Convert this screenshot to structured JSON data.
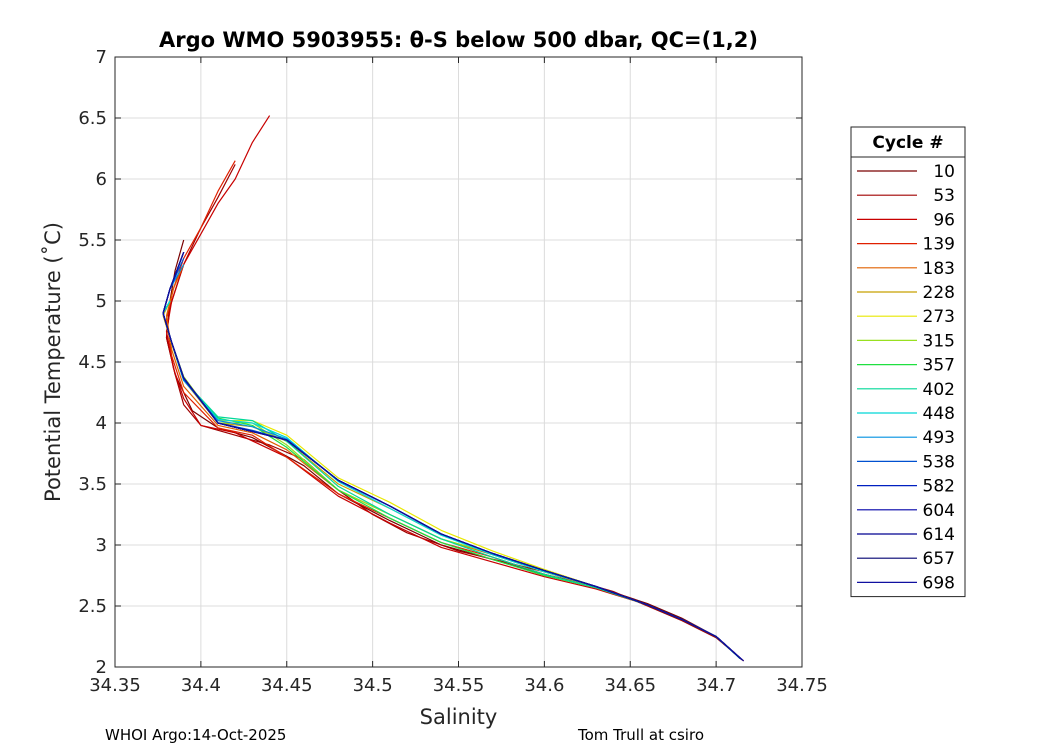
{
  "chart_data": {
    "type": "line",
    "title": "Argo WMO 5903955: θ-S below 500 dbar,  QC=(1,2)",
    "xlabel": "Salinity",
    "ylabel": "Potential Temperature (˚C)",
    "xlim": [
      34.35,
      34.75
    ],
    "ylim": [
      2,
      7
    ],
    "xticks": [
      "34.35",
      "34.4",
      "34.45",
      "34.5",
      "34.55",
      "34.6",
      "34.65",
      "34.7",
      "34.75"
    ],
    "yticks": [
      "2",
      "2.5",
      "3",
      "3.5",
      "4",
      "4.5",
      "5",
      "5.5",
      "6",
      "6.5",
      "7"
    ],
    "grid": true,
    "legend": {
      "title": "Cycle #",
      "placement": "right"
    },
    "series": [
      {
        "name": "10",
        "color": "#7a0000",
        "x": [
          34.716,
          34.7,
          34.68,
          34.66,
          34.63,
          34.6,
          34.57,
          34.54,
          34.51,
          34.48,
          34.46,
          34.43,
          34.41,
          34.395,
          34.385,
          34.38,
          34.382,
          34.385,
          34.39
        ],
        "y": [
          2.05,
          2.25,
          2.4,
          2.52,
          2.66,
          2.76,
          2.88,
          3.0,
          3.2,
          3.42,
          3.65,
          3.88,
          3.96,
          4.1,
          4.4,
          4.7,
          5.0,
          5.25,
          5.5
        ]
      },
      {
        "name": "53",
        "color": "#a00000",
        "x": [
          34.716,
          34.7,
          34.68,
          34.66,
          34.64,
          34.62,
          34.6,
          34.58,
          34.55,
          34.52,
          34.5,
          34.48,
          34.46,
          34.44,
          34.42,
          34.4,
          34.39,
          34.385,
          34.38,
          34.382,
          34.39,
          34.4,
          34.41,
          34.42
        ],
        "y": [
          2.05,
          2.24,
          2.38,
          2.5,
          2.62,
          2.7,
          2.78,
          2.85,
          2.95,
          3.1,
          3.25,
          3.45,
          3.7,
          3.82,
          3.9,
          3.98,
          4.15,
          4.4,
          4.7,
          4.95,
          5.3,
          5.6,
          5.85,
          6.12
        ]
      },
      {
        "name": "96",
        "color": "#c80000",
        "x": [
          34.715,
          34.7,
          34.68,
          34.66,
          34.63,
          34.6,
          34.57,
          34.54,
          34.51,
          34.48,
          34.45,
          34.42,
          34.4,
          34.39,
          34.384,
          34.38,
          34.383,
          34.39,
          34.4,
          34.41,
          34.42,
          34.43,
          34.44
        ],
        "y": [
          2.06,
          2.25,
          2.39,
          2.51,
          2.64,
          2.74,
          2.86,
          2.98,
          3.18,
          3.4,
          3.72,
          3.92,
          3.98,
          4.2,
          4.45,
          4.75,
          5.0,
          5.3,
          5.55,
          5.8,
          6.0,
          6.3,
          6.52
        ]
      },
      {
        "name": "139",
        "color": "#e02000",
        "x": [
          34.715,
          34.7,
          34.68,
          34.66,
          34.63,
          34.6,
          34.57,
          34.54,
          34.51,
          34.48,
          34.45,
          34.43,
          34.41,
          34.39,
          34.383,
          34.38,
          34.384,
          34.39,
          34.4,
          34.41,
          34.42
        ],
        "y": [
          2.06,
          2.25,
          2.39,
          2.51,
          2.65,
          2.76,
          2.9,
          3.02,
          3.22,
          3.42,
          3.72,
          3.9,
          3.96,
          4.25,
          4.55,
          4.85,
          5.1,
          5.35,
          5.6,
          5.9,
          6.15
        ]
      },
      {
        "name": "183",
        "color": "#e06000",
        "x": [
          34.714,
          34.7,
          34.68,
          34.66,
          34.63,
          34.6,
          34.57,
          34.54,
          34.51,
          34.48,
          34.45,
          34.43,
          34.41,
          34.39,
          34.383,
          34.38,
          34.384,
          34.39
        ],
        "y": [
          2.07,
          2.25,
          2.39,
          2.51,
          2.65,
          2.78,
          2.92,
          3.05,
          3.25,
          3.45,
          3.78,
          3.92,
          3.98,
          4.3,
          4.6,
          4.88,
          5.1,
          5.3
        ]
      },
      {
        "name": "228",
        "color": "#c8a000",
        "x": [
          34.714,
          34.7,
          34.68,
          34.66,
          34.63,
          34.6,
          34.57,
          34.54,
          34.51,
          34.48,
          34.45,
          34.43,
          34.41,
          34.39,
          34.383,
          34.378,
          34.382
        ],
        "y": [
          2.07,
          2.25,
          2.39,
          2.51,
          2.66,
          2.78,
          2.93,
          3.08,
          3.3,
          3.5,
          3.85,
          3.97,
          4.0,
          4.35,
          4.65,
          4.88,
          5.0
        ]
      },
      {
        "name": "273",
        "color": "#e8e800",
        "x": [
          34.714,
          34.7,
          34.68,
          34.66,
          34.63,
          34.6,
          34.57,
          34.54,
          34.51,
          34.48,
          34.45,
          34.43,
          34.41,
          34.39,
          34.383,
          34.378,
          34.382
        ],
        "y": [
          2.07,
          2.25,
          2.39,
          2.51,
          2.66,
          2.8,
          2.95,
          3.12,
          3.35,
          3.55,
          3.9,
          4.02,
          4.02,
          4.35,
          4.65,
          4.9,
          5.0
        ]
      },
      {
        "name": "315",
        "color": "#98e020",
        "x": [
          34.714,
          34.7,
          34.68,
          34.66,
          34.63,
          34.6,
          34.57,
          34.54,
          34.51,
          34.48,
          34.45,
          34.43,
          34.41,
          34.39,
          34.383,
          34.378,
          34.382
        ],
        "y": [
          2.07,
          2.25,
          2.39,
          2.51,
          2.66,
          2.78,
          2.93,
          3.05,
          3.25,
          3.45,
          3.82,
          4.0,
          4.0,
          4.38,
          4.66,
          4.9,
          5.0
        ]
      },
      {
        "name": "357",
        "color": "#20e040",
        "x": [
          34.714,
          34.7,
          34.68,
          34.66,
          34.63,
          34.6,
          34.57,
          34.54,
          34.51,
          34.48,
          34.45,
          34.43,
          34.41,
          34.39,
          34.383,
          34.378,
          34.382
        ],
        "y": [
          2.07,
          2.25,
          2.39,
          2.51,
          2.65,
          2.75,
          2.88,
          3.02,
          3.22,
          3.45,
          3.8,
          3.98,
          4.04,
          4.35,
          4.66,
          4.9,
          5.0
        ]
      },
      {
        "name": "402",
        "color": "#00d898",
        "x": [
          34.714,
          34.7,
          34.68,
          34.66,
          34.63,
          34.6,
          34.57,
          34.54,
          34.51,
          34.48,
          34.45,
          34.43,
          34.41,
          34.39,
          34.383,
          34.378,
          34.382
        ],
        "y": [
          2.07,
          2.25,
          2.39,
          2.51,
          2.65,
          2.76,
          2.9,
          3.05,
          3.25,
          3.48,
          3.85,
          4.02,
          4.05,
          4.35,
          4.66,
          4.9,
          5.0
        ]
      },
      {
        "name": "448",
        "color": "#00d8d8",
        "x": [
          34.714,
          34.7,
          34.68,
          34.66,
          34.63,
          34.6,
          34.57,
          34.54,
          34.51,
          34.48,
          34.45,
          34.43,
          34.41,
          34.39,
          34.383,
          34.378,
          34.382
        ],
        "y": [
          2.07,
          2.25,
          2.39,
          2.51,
          2.66,
          2.78,
          2.92,
          3.08,
          3.3,
          3.52,
          3.88,
          4.0,
          4.03,
          4.35,
          4.66,
          4.9,
          5.0
        ]
      },
      {
        "name": "493",
        "color": "#0090e0",
        "x": [
          34.714,
          34.7,
          34.68,
          34.66,
          34.63,
          34.6,
          34.57,
          34.54,
          34.51,
          34.48,
          34.45,
          34.43,
          34.41,
          34.39,
          34.383,
          34.378,
          34.382,
          34.39
        ],
        "y": [
          2.07,
          2.25,
          2.39,
          2.51,
          2.66,
          2.79,
          2.93,
          3.09,
          3.32,
          3.53,
          3.87,
          3.97,
          4.02,
          4.35,
          4.66,
          4.9,
          5.1,
          5.3
        ]
      },
      {
        "name": "538",
        "color": "#0050d0",
        "x": [
          34.714,
          34.7,
          34.68,
          34.66,
          34.63,
          34.6,
          34.57,
          34.54,
          34.51,
          34.48,
          34.45,
          34.43,
          34.41,
          34.39,
          34.383,
          34.378,
          34.382,
          34.39
        ],
        "y": [
          2.07,
          2.25,
          2.39,
          2.51,
          2.66,
          2.79,
          2.93,
          3.09,
          3.32,
          3.53,
          3.86,
          3.94,
          4.0,
          4.36,
          4.66,
          4.9,
          5.1,
          5.35
        ]
      },
      {
        "name": "582",
        "color": "#0020c0",
        "x": [
          34.715,
          34.7,
          34.68,
          34.66,
          34.63,
          34.6,
          34.57,
          34.54,
          34.51,
          34.48,
          34.45,
          34.43,
          34.41,
          34.39,
          34.383,
          34.378,
          34.382,
          34.39
        ],
        "y": [
          2.06,
          2.25,
          2.39,
          2.51,
          2.66,
          2.79,
          2.93,
          3.09,
          3.32,
          3.53,
          3.86,
          3.93,
          4.0,
          4.37,
          4.66,
          4.9,
          5.1,
          5.4
        ]
      },
      {
        "name": "604",
        "color": "#0000a8",
        "x": [
          34.715,
          34.7,
          34.68,
          34.66,
          34.63,
          34.6,
          34.57,
          34.54,
          34.51,
          34.48,
          34.45,
          34.43,
          34.41,
          34.39,
          34.383,
          34.378,
          34.382,
          34.39
        ],
        "y": [
          2.06,
          2.25,
          2.39,
          2.51,
          2.66,
          2.79,
          2.93,
          3.09,
          3.32,
          3.53,
          3.86,
          3.93,
          4.0,
          4.37,
          4.66,
          4.9,
          5.1,
          5.4
        ]
      },
      {
        "name": "614",
        "color": "#000090",
        "x": [
          34.715,
          34.7,
          34.68,
          34.66,
          34.63,
          34.6,
          34.57,
          34.54,
          34.51,
          34.48,
          34.45,
          34.43,
          34.41,
          34.39,
          34.383,
          34.378,
          34.382,
          34.39
        ],
        "y": [
          2.06,
          2.25,
          2.39,
          2.51,
          2.66,
          2.79,
          2.93,
          3.09,
          3.32,
          3.53,
          3.86,
          3.93,
          4.0,
          4.37,
          4.66,
          4.9,
          5.1,
          5.4
        ]
      },
      {
        "name": "657",
        "color": "#000070",
        "x": [
          34.715,
          34.7,
          34.68,
          34.66,
          34.63,
          34.6,
          34.57,
          34.54,
          34.51,
          34.48,
          34.45,
          34.43,
          34.41,
          34.39,
          34.383,
          34.378,
          34.382,
          34.39
        ],
        "y": [
          2.06,
          2.25,
          2.39,
          2.51,
          2.66,
          2.79,
          2.93,
          3.09,
          3.32,
          3.53,
          3.86,
          3.93,
          4.0,
          4.37,
          4.66,
          4.9,
          5.1,
          5.4
        ]
      },
      {
        "name": "698",
        "color": "#1010a0",
        "x": [
          34.716,
          34.7,
          34.68,
          34.66,
          34.63,
          34.6,
          34.57,
          34.54,
          34.51,
          34.48,
          34.45,
          34.43,
          34.41,
          34.39,
          34.383,
          34.378,
          34.382,
          34.39
        ],
        "y": [
          2.05,
          2.25,
          2.39,
          2.51,
          2.66,
          2.79,
          2.93,
          3.09,
          3.32,
          3.53,
          3.86,
          3.93,
          4.0,
          4.37,
          4.66,
          4.9,
          5.1,
          5.4
        ]
      }
    ]
  },
  "footer": {
    "left": "WHOI Argo:14-Oct-2025",
    "right": "Tom Trull at csiro"
  }
}
